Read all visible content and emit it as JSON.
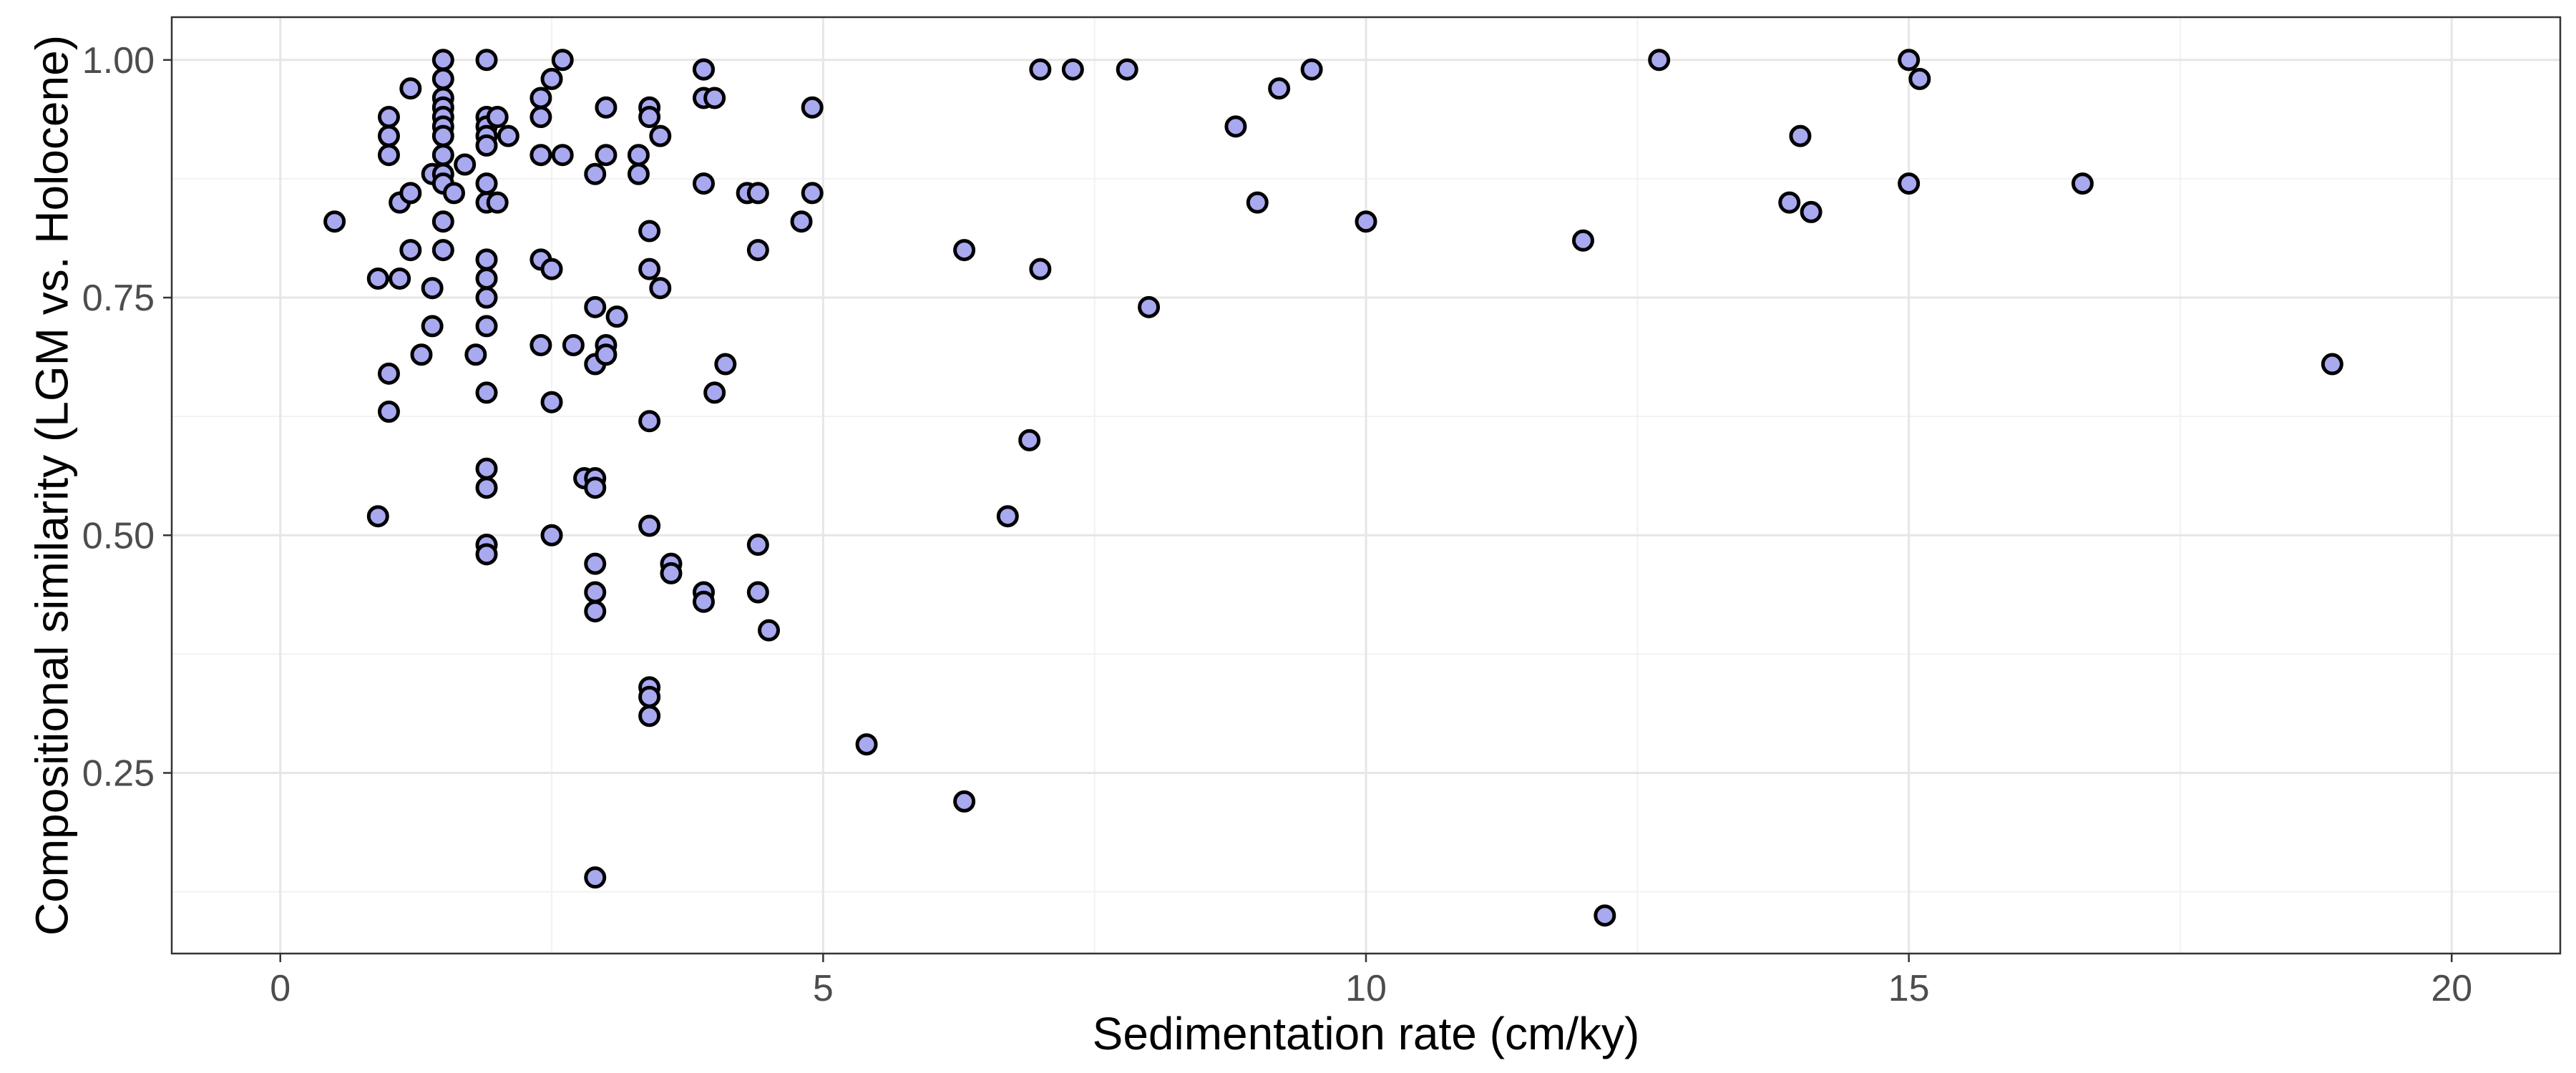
{
  "chart_data": {
    "type": "scatter",
    "xlabel": "Sedimentation rate (cm/ky)",
    "ylabel": "Compositional similarity (LGM vs. Holocene)",
    "xlim": [
      -1,
      21
    ],
    "ylim": [
      0.06,
      1.045
    ],
    "x_ticks": [
      0,
      5,
      10,
      15,
      20
    ],
    "x_tick_labels": [
      "0",
      "5",
      "10",
      "15",
      "20"
    ],
    "y_ticks": [
      0.25,
      0.5,
      0.75,
      1.0
    ],
    "y_tick_labels": [
      "0.25",
      "0.50",
      "0.75",
      "1.00"
    ],
    "grid": true,
    "legend": "none",
    "point_fill": "#a9a9f0",
    "point_stroke": "#000000",
    "points": [
      [
        0.5,
        0.83
      ],
      [
        0.9,
        0.77
      ],
      [
        0.9,
        0.52
      ],
      [
        1.0,
        0.94
      ],
      [
        1.0,
        0.92
      ],
      [
        1.0,
        0.9
      ],
      [
        1.0,
        0.67
      ],
      [
        1.0,
        0.63
      ],
      [
        1.1,
        0.85
      ],
      [
        1.1,
        0.77
      ],
      [
        1.2,
        0.97
      ],
      [
        1.2,
        0.86
      ],
      [
        1.2,
        0.8
      ],
      [
        1.3,
        0.69
      ],
      [
        1.4,
        0.88
      ],
      [
        1.4,
        0.76
      ],
      [
        1.4,
        0.72
      ],
      [
        1.5,
        1.0
      ],
      [
        1.5,
        0.98
      ],
      [
        1.5,
        0.96
      ],
      [
        1.5,
        0.95
      ],
      [
        1.5,
        0.94
      ],
      [
        1.5,
        0.93
      ],
      [
        1.5,
        0.92
      ],
      [
        1.5,
        0.9
      ],
      [
        1.5,
        0.88
      ],
      [
        1.5,
        0.87
      ],
      [
        1.5,
        0.83
      ],
      [
        1.5,
        0.8
      ],
      [
        1.6,
        0.86
      ],
      [
        1.7,
        0.89
      ],
      [
        1.8,
        0.69
      ],
      [
        1.9,
        1.0
      ],
      [
        1.9,
        0.94
      ],
      [
        1.9,
        0.93
      ],
      [
        1.9,
        0.92
      ],
      [
        1.9,
        0.91
      ],
      [
        1.9,
        0.87
      ],
      [
        1.9,
        0.85
      ],
      [
        1.9,
        0.79
      ],
      [
        1.9,
        0.77
      ],
      [
        1.9,
        0.75
      ],
      [
        1.9,
        0.72
      ],
      [
        1.9,
        0.65
      ],
      [
        1.9,
        0.57
      ],
      [
        1.9,
        0.55
      ],
      [
        1.9,
        0.49
      ],
      [
        1.9,
        0.48
      ],
      [
        2.0,
        0.94
      ],
      [
        2.0,
        0.85
      ],
      [
        2.1,
        0.92
      ],
      [
        2.4,
        0.96
      ],
      [
        2.4,
        0.94
      ],
      [
        2.4,
        0.9
      ],
      [
        2.4,
        0.79
      ],
      [
        2.4,
        0.7
      ],
      [
        2.5,
        0.98
      ],
      [
        2.5,
        0.78
      ],
      [
        2.5,
        0.64
      ],
      [
        2.5,
        0.5
      ],
      [
        2.6,
        1.0
      ],
      [
        2.6,
        0.9
      ],
      [
        2.7,
        0.7
      ],
      [
        2.8,
        0.56
      ],
      [
        2.9,
        0.88
      ],
      [
        2.9,
        0.74
      ],
      [
        2.9,
        0.68
      ],
      [
        2.9,
        0.56
      ],
      [
        2.9,
        0.55
      ],
      [
        2.9,
        0.47
      ],
      [
        2.9,
        0.44
      ],
      [
        2.9,
        0.42
      ],
      [
        2.9,
        0.14
      ],
      [
        3.0,
        0.95
      ],
      [
        3.0,
        0.9
      ],
      [
        3.0,
        0.7
      ],
      [
        3.0,
        0.69
      ],
      [
        3.1,
        0.73
      ],
      [
        3.3,
        0.9
      ],
      [
        3.3,
        0.88
      ],
      [
        3.4,
        0.95
      ],
      [
        3.4,
        0.94
      ],
      [
        3.4,
        0.82
      ],
      [
        3.4,
        0.78
      ],
      [
        3.4,
        0.62
      ],
      [
        3.4,
        0.51
      ],
      [
        3.4,
        0.34
      ],
      [
        3.4,
        0.33
      ],
      [
        3.4,
        0.31
      ],
      [
        3.5,
        0.92
      ],
      [
        3.5,
        0.76
      ],
      [
        3.6,
        0.47
      ],
      [
        3.6,
        0.46
      ],
      [
        3.9,
        0.99
      ],
      [
        3.9,
        0.99
      ],
      [
        3.9,
        0.96
      ],
      [
        3.9,
        0.87
      ],
      [
        3.9,
        0.44
      ],
      [
        3.9,
        0.43
      ],
      [
        4.0,
        0.96
      ],
      [
        4.0,
        0.65
      ],
      [
        4.1,
        0.68
      ],
      [
        4.3,
        0.86
      ],
      [
        4.4,
        0.86
      ],
      [
        4.4,
        0.8
      ],
      [
        4.4,
        0.49
      ],
      [
        4.4,
        0.44
      ],
      [
        4.5,
        0.4
      ],
      [
        4.8,
        0.83
      ],
      [
        4.9,
        0.95
      ],
      [
        4.9,
        0.86
      ],
      [
        5.4,
        0.28
      ],
      [
        6.3,
        0.8
      ],
      [
        6.3,
        0.22
      ],
      [
        6.7,
        0.52
      ],
      [
        6.9,
        0.6
      ],
      [
        7.0,
        0.99
      ],
      [
        7.0,
        0.78
      ],
      [
        7.3,
        0.99
      ],
      [
        7.8,
        0.99
      ],
      [
        8.0,
        0.74
      ],
      [
        8.8,
        0.93
      ],
      [
        9.0,
        0.85
      ],
      [
        9.2,
        0.97
      ],
      [
        9.5,
        0.99
      ],
      [
        10.0,
        0.83
      ],
      [
        12.0,
        0.81
      ],
      [
        12.2,
        0.1
      ],
      [
        12.7,
        1.0
      ],
      [
        13.9,
        0.85
      ],
      [
        14.0,
        0.92
      ],
      [
        14.1,
        0.84
      ],
      [
        15.0,
        1.0
      ],
      [
        15.0,
        0.87
      ],
      [
        15.1,
        0.98
      ],
      [
        16.6,
        0.87
      ],
      [
        18.9,
        0.68
      ]
    ]
  }
}
